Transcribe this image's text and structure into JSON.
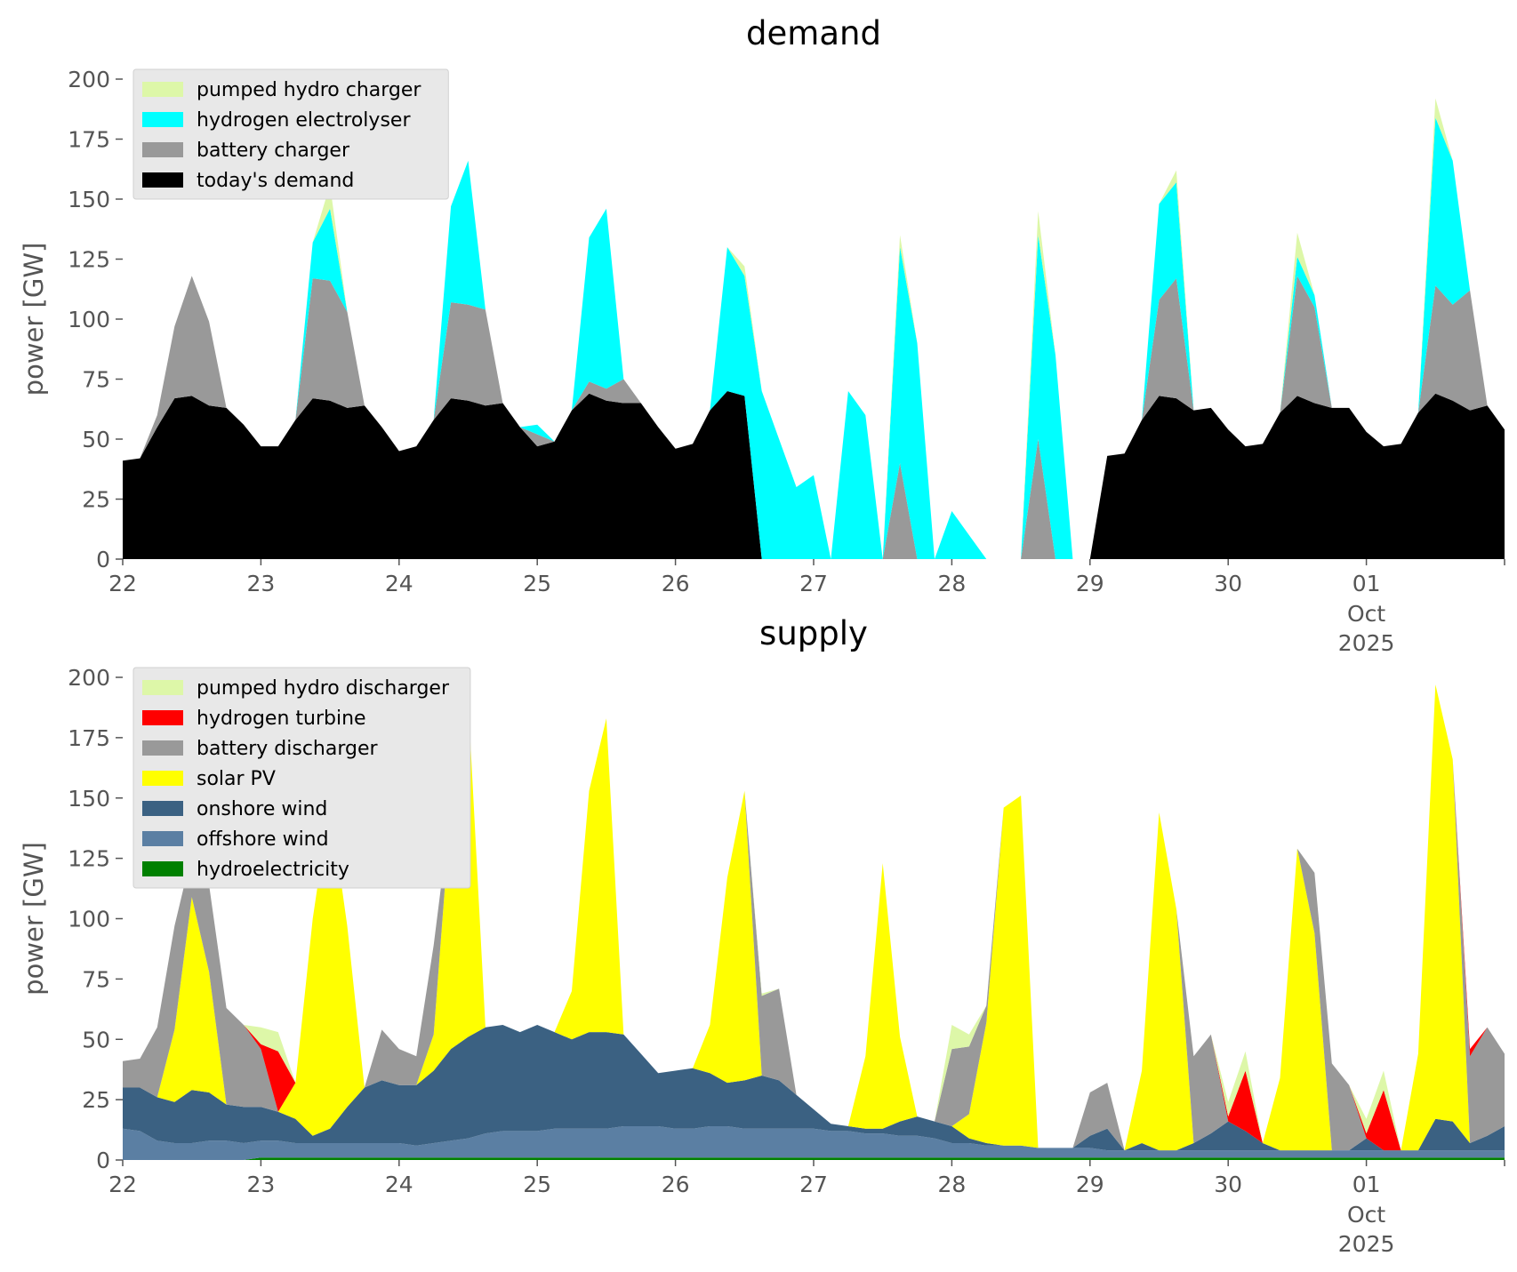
{
  "chart_data": [
    {
      "type": "area",
      "stacked": true,
      "title": "demand",
      "xlabel": "",
      "ylabel": "power [GW]",
      "ylim": [
        0,
        200
      ],
      "yticks": [
        0,
        25,
        50,
        75,
        100,
        125,
        150,
        175,
        200
      ],
      "xlim": [
        0,
        10
      ],
      "xticks": [
        "22",
        "23",
        "24",
        "25",
        "26",
        "27",
        "28",
        "29",
        "30",
        "01"
      ],
      "xtick_sublabel": {
        "index": 9,
        "lines": [
          "Oct",
          "2025"
        ]
      },
      "grid": false,
      "legend": "top-left",
      "x": [
        0,
        0.125,
        0.25,
        0.375,
        0.5,
        0.625,
        0.75,
        0.875,
        1,
        1.125,
        1.25,
        1.375,
        1.5,
        1.625,
        1.75,
        1.875,
        2,
        2.125,
        2.25,
        2.375,
        2.5,
        2.625,
        2.75,
        2.875,
        3,
        3.125,
        3.25,
        3.375,
        3.5,
        3.625,
        3.75,
        3.875,
        4,
        4.125,
        4.25,
        4.375,
        4.5,
        4.625,
        4.75,
        4.875,
        5,
        5.125,
        5.25,
        5.375,
        5.5,
        5.625,
        5.75,
        5.875,
        6,
        6.125,
        6.25,
        6.375,
        6.5,
        6.625,
        6.75,
        6.875,
        7,
        7.125,
        7.25,
        7.375,
        7.5,
        7.625,
        7.75,
        7.875,
        8,
        8.125,
        8.25,
        8.375,
        8.5,
        8.625,
        8.75,
        8.875,
        9,
        9.125,
        9.25,
        9.375,
        9.5,
        9.625,
        9.75,
        9.875,
        10
      ],
      "series": [
        {
          "name": "today's demand",
          "color": "#000000",
          "values": [
            41,
            42,
            55,
            67,
            68,
            64,
            63,
            56,
            47,
            47,
            58,
            67,
            66,
            63,
            64,
            55,
            45,
            47,
            58,
            67,
            66,
            64,
            65,
            55,
            47,
            49,
            62,
            69,
            66,
            65,
            65,
            55,
            46,
            48,
            62,
            70,
            68,
            0,
            0,
            0,
            0,
            0,
            0,
            0,
            0,
            0,
            0,
            0,
            0,
            0,
            0,
            0,
            0,
            0,
            0,
            0,
            0,
            43,
            44,
            58,
            68,
            67,
            62,
            63,
            54,
            47,
            48,
            61,
            68,
            65,
            63,
            63,
            53,
            47,
            48,
            61,
            69,
            66,
            62,
            64,
            54
          ]
        },
        {
          "name": "battery charger",
          "color": "#999999",
          "values": [
            0,
            0,
            5,
            30,
            50,
            35,
            0,
            0,
            0,
            0,
            0,
            50,
            50,
            40,
            0,
            0,
            0,
            0,
            0,
            40,
            40,
            40,
            0,
            0,
            5,
            0,
            0,
            5,
            5,
            10,
            0,
            0,
            0,
            0,
            0,
            0,
            0,
            0,
            0,
            0,
            0,
            0,
            0,
            0,
            0,
            40,
            0,
            0,
            0,
            0,
            0,
            0,
            0,
            50,
            0,
            0,
            0,
            0,
            0,
            0,
            40,
            50,
            0,
            0,
            0,
            0,
            0,
            0,
            50,
            40,
            0,
            0,
            0,
            0,
            0,
            0,
            45,
            40,
            50,
            0,
            0
          ]
        },
        {
          "name": "hydrogen electrolyser",
          "color": "#00ffff",
          "values": [
            0,
            0,
            0,
            0,
            0,
            0,
            0,
            0,
            0,
            0,
            0,
            15,
            30,
            0,
            0,
            0,
            0,
            0,
            0,
            40,
            60,
            0,
            0,
            0,
            4,
            0,
            0,
            60,
            75,
            0,
            0,
            0,
            0,
            0,
            0,
            60,
            50,
            70,
            50,
            30,
            35,
            0,
            70,
            60,
            0,
            90,
            90,
            0,
            20,
            10,
            0,
            0,
            0,
            85,
            85,
            0,
            0,
            0,
            0,
            0,
            40,
            40,
            0,
            0,
            0,
            0,
            0,
            0,
            8,
            5,
            0,
            0,
            0,
            0,
            0,
            0,
            70,
            60,
            0,
            0,
            0
          ]
        },
        {
          "name": "pumped hydro charger",
          "color": "#ddf7a8",
          "values": [
            0,
            0,
            0,
            0,
            0,
            0,
            0,
            0,
            0,
            0,
            0,
            0,
            10,
            0,
            0,
            0,
            0,
            0,
            0,
            0,
            0,
            0,
            0,
            0,
            0,
            0,
            0,
            0,
            0,
            0,
            0,
            0,
            0,
            0,
            0,
            0,
            4,
            0,
            0,
            0,
            0,
            0,
            0,
            0,
            0,
            5,
            0,
            0,
            0,
            0,
            0,
            0,
            0,
            10,
            0,
            0,
            0,
            0,
            0,
            0,
            0,
            5,
            0,
            0,
            0,
            0,
            0,
            0,
            10,
            0,
            0,
            0,
            0,
            0,
            0,
            0,
            8,
            0,
            0,
            0,
            0
          ]
        }
      ]
    },
    {
      "type": "area",
      "stacked": true,
      "title": "supply",
      "xlabel": "",
      "ylabel": "power [GW]",
      "ylim": [
        0,
        200
      ],
      "yticks": [
        0,
        25,
        50,
        75,
        100,
        125,
        150,
        175,
        200
      ],
      "xlim": [
        0,
        10
      ],
      "xticks": [
        "22",
        "23",
        "24",
        "25",
        "26",
        "27",
        "28",
        "29",
        "30",
        "01"
      ],
      "xtick_sublabel": {
        "index": 9,
        "lines": [
          "Oct",
          "2025"
        ]
      },
      "grid": false,
      "legend": "top-left",
      "x": [
        0,
        0.125,
        0.25,
        0.375,
        0.5,
        0.625,
        0.75,
        0.875,
        1,
        1.125,
        1.25,
        1.375,
        1.5,
        1.625,
        1.75,
        1.875,
        2,
        2.125,
        2.25,
        2.375,
        2.5,
        2.625,
        2.75,
        2.875,
        3,
        3.125,
        3.25,
        3.375,
        3.5,
        3.625,
        3.75,
        3.875,
        4,
        4.125,
        4.25,
        4.375,
        4.5,
        4.625,
        4.75,
        4.875,
        5,
        5.125,
        5.25,
        5.375,
        5.5,
        5.625,
        5.75,
        5.875,
        6,
        6.125,
        6.25,
        6.375,
        6.5,
        6.625,
        6.75,
        6.875,
        7,
        7.125,
        7.25,
        7.375,
        7.5,
        7.625,
        7.75,
        7.875,
        8,
        8.125,
        8.25,
        8.375,
        8.5,
        8.625,
        8.75,
        8.875,
        9,
        9.125,
        9.25,
        9.375,
        9.5,
        9.625,
        9.75,
        9.875,
        10
      ],
      "series": [
        {
          "name": "hydroelectricity",
          "color": "#008000",
          "values": [
            0,
            0,
            0,
            0,
            0,
            0,
            0,
            0,
            1,
            1,
            1,
            1,
            1,
            1,
            1,
            1,
            1,
            1,
            1,
            1,
            1,
            1,
            1,
            1,
            1,
            1,
            1,
            1,
            1,
            1,
            1,
            1,
            1,
            1,
            1,
            1,
            1,
            1,
            1,
            1,
            1,
            1,
            1,
            1,
            1,
            1,
            1,
            1,
            1,
            1,
            1,
            1,
            1,
            1,
            1,
            1,
            1,
            1,
            1,
            1,
            1,
            1,
            1,
            1,
            1,
            1,
            1,
            1,
            1,
            1,
            1,
            1,
            1,
            1,
            1,
            1,
            1,
            1,
            1,
            1,
            1
          ]
        },
        {
          "name": "offshore wind",
          "color": "#5b7fa3",
          "values": [
            13,
            12,
            8,
            7,
            7,
            8,
            8,
            7,
            7,
            7,
            6,
            6,
            6,
            6,
            6,
            6,
            6,
            5,
            6,
            7,
            8,
            10,
            11,
            11,
            11,
            12,
            12,
            12,
            12,
            13,
            13,
            13,
            12,
            12,
            13,
            13,
            12,
            12,
            12,
            12,
            12,
            11,
            11,
            10,
            10,
            9,
            9,
            8,
            6,
            6,
            5,
            5,
            5,
            4,
            4,
            4,
            4,
            3,
            3,
            3,
            3,
            3,
            3,
            3,
            3,
            3,
            3,
            3,
            3,
            3,
            3,
            3,
            3,
            3,
            3,
            3,
            3,
            3,
            3,
            3,
            3
          ]
        },
        {
          "name": "onshore wind",
          "color": "#3b6182",
          "values": [
            17,
            18,
            18,
            17,
            22,
            20,
            15,
            15,
            14,
            12,
            10,
            3,
            6,
            15,
            23,
            26,
            24,
            25,
            30,
            38,
            42,
            44,
            44,
            41,
            44,
            40,
            37,
            40,
            40,
            38,
            30,
            22,
            24,
            25,
            22,
            18,
            20,
            22,
            20,
            14,
            8,
            3,
            2,
            2,
            2,
            6,
            8,
            7,
            7,
            2,
            1,
            0,
            0,
            0,
            0,
            0,
            5,
            9,
            0,
            3,
            0,
            0,
            3,
            7,
            12,
            8,
            3,
            0,
            0,
            0,
            0,
            0,
            5,
            0,
            0,
            0,
            13,
            12,
            3,
            6,
            10
          ]
        },
        {
          "name": "solar PV",
          "color": "#ffff00",
          "values": [
            0,
            0,
            0,
            30,
            80,
            50,
            0,
            0,
            0,
            0,
            15,
            90,
            135,
            75,
            0,
            0,
            0,
            0,
            15,
            100,
            140,
            0,
            0,
            0,
            0,
            0,
            20,
            100,
            130,
            0,
            0,
            0,
            0,
            0,
            20,
            85,
            120,
            0,
            0,
            0,
            0,
            0,
            0,
            30,
            110,
            35,
            0,
            0,
            0,
            10,
            50,
            140,
            145,
            0,
            0,
            0,
            0,
            0,
            0,
            30,
            140,
            100,
            0,
            0,
            0,
            0,
            0,
            30,
            125,
            90,
            0,
            0,
            0,
            0,
            0,
            40,
            180,
            150,
            0,
            0,
            0
          ]
        },
        {
          "name": "battery discharger",
          "color": "#999999",
          "values": [
            11,
            12,
            29,
            43,
            18,
            36,
            40,
            34,
            24,
            0,
            0,
            0,
            0,
            0,
            0,
            21,
            15,
            12,
            37,
            0,
            0,
            0,
            0,
            0,
            0,
            0,
            0,
            0,
            0,
            0,
            0,
            0,
            0,
            0,
            0,
            0,
            0,
            33,
            38,
            0,
            0,
            0,
            0,
            0,
            0,
            0,
            0,
            0,
            32,
            28,
            7,
            0,
            0,
            0,
            0,
            0,
            18,
            19,
            0,
            0,
            0,
            0,
            36,
            41,
            0,
            0,
            0,
            0,
            0,
            25,
            36,
            27,
            0,
            0,
            0,
            0,
            0,
            0,
            36,
            45,
            30
          ]
        },
        {
          "name": "hydrogen turbine",
          "color": "#ff0000",
          "values": [
            0,
            0,
            0,
            0,
            0,
            0,
            0,
            0,
            2,
            25,
            0,
            0,
            0,
            0,
            0,
            0,
            0,
            0,
            0,
            0,
            0,
            0,
            0,
            0,
            0,
            0,
            0,
            0,
            0,
            0,
            0,
            0,
            0,
            0,
            0,
            0,
            0,
            0,
            0,
            0,
            0,
            0,
            0,
            0,
            0,
            0,
            0,
            0,
            0,
            0,
            0,
            0,
            0,
            0,
            0,
            0,
            0,
            0,
            0,
            0,
            0,
            0,
            0,
            0,
            2,
            25,
            0,
            0,
            0,
            0,
            0,
            0,
            2,
            25,
            0,
            0,
            0,
            0,
            3,
            0,
            0
          ]
        },
        {
          "name": "pumped hydro discharger",
          "color": "#ddf7a8",
          "values": [
            0,
            0,
            0,
            0,
            0,
            0,
            0,
            0,
            7,
            8,
            0,
            0,
            0,
            0,
            0,
            0,
            0,
            0,
            0,
            0,
            0,
            0,
            0,
            0,
            0,
            0,
            0,
            0,
            0,
            0,
            0,
            0,
            0,
            0,
            0,
            0,
            0,
            1,
            0,
            0,
            0,
            0,
            0,
            0,
            0,
            0,
            0,
            0,
            10,
            5,
            0,
            0,
            0,
            0,
            0,
            0,
            0,
            0,
            0,
            0,
            0,
            0,
            0,
            0,
            6,
            8,
            0,
            0,
            0,
            0,
            0,
            0,
            6,
            8,
            0,
            0,
            0,
            0,
            0,
            0,
            0
          ]
        }
      ]
    }
  ]
}
